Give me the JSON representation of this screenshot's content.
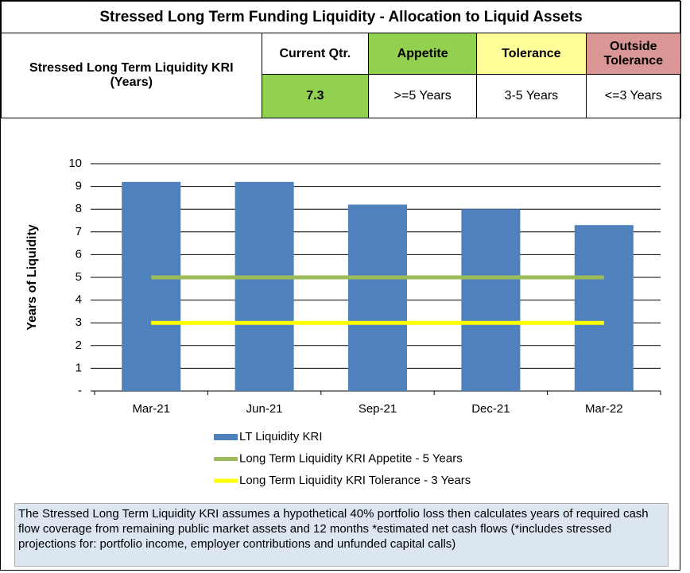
{
  "table": {
    "title": "Stressed Long Term Funding Liquidity - Allocation to Liquid Assets",
    "row_label": "Stressed Long Term Liquidity KRI (Years)",
    "headers": [
      "Current Qtr.",
      "Appetite",
      "Tolerance",
      "Outside Tolerance"
    ],
    "values": [
      7.3,
      ">=5 Years",
      "3-5 Years",
      "<=3 Years"
    ]
  },
  "chart_data": {
    "type": "bar",
    "y_label": "Years of Liquidity",
    "categories": [
      "Mar-21",
      "Jun-21",
      "Sep-21",
      "Dec-21",
      "Mar-22"
    ],
    "series": [
      {
        "name": "LT Liquidity KRI",
        "color": "#4f81bd",
        "values": [
          9.2,
          9.2,
          8.2,
          8.0,
          7.3
        ]
      },
      {
        "name": "Long Term Liquidity KRI Appetite - 5 Years",
        "color": "#9bbb59",
        "type": "line",
        "values": [
          5,
          5,
          5,
          5,
          5
        ]
      },
      {
        "name": "Long Term Liquidity KRI Tolerance - 3 Years",
        "color": "#ffff00",
        "type": "line",
        "values": [
          3,
          3,
          3,
          3,
          3
        ]
      }
    ],
    "ylim": [
      0,
      10
    ],
    "yticks": [
      {
        "value": 0,
        "label": "-"
      },
      1,
      2,
      3,
      4,
      5,
      6,
      7,
      8,
      9,
      10
    ],
    "grid": true
  },
  "footnote": "The Stressed Long Term Liquidity KRI assumes a hypothetical 40% portfolio loss then calculates years of required cash flow coverage from remaining public market assets and 12 months *estimated net cash flows (*includes stressed projections for: portfolio income, employer contributions and unfunded capital calls)"
}
